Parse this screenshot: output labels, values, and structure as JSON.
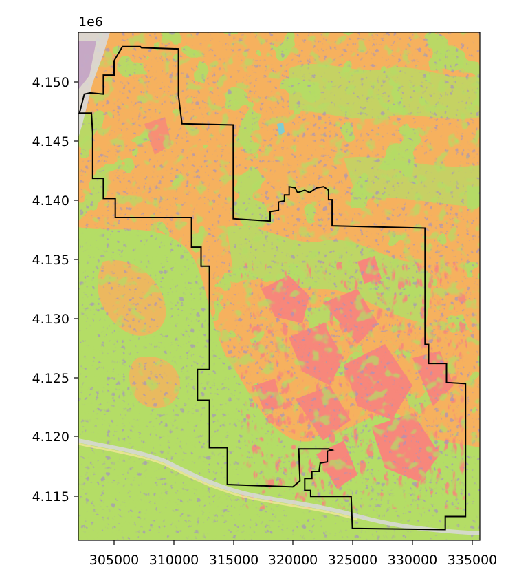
{
  "map": {
    "offset_label": "1e6",
    "x_ticks": [
      "305000",
      "310000",
      "315000",
      "320000",
      "325000",
      "330000",
      "335000"
    ],
    "y_ticks": [
      "4.115",
      "4.120",
      "4.125",
      "4.130",
      "4.135",
      "4.140",
      "4.145",
      "4.150"
    ],
    "colors": {
      "orange_cover": "#f6b15e",
      "green_cover": "#b4dd66",
      "red_cover": "#f7877b",
      "purple_lines": "#a594c0",
      "light_gray": "#d9d9d9",
      "cyan_water": "#7fcdd0",
      "boundary": "#000000"
    }
  },
  "chart_data": {
    "type": "map",
    "x_ticks": [
      305000,
      310000,
      315000,
      320000,
      325000,
      330000,
      335000
    ],
    "y_ticks": [
      4.115,
      4.12,
      4.125,
      4.13,
      4.135,
      4.14,
      4.145,
      4.15
    ],
    "y_offset": "1e6",
    "xlim": [
      302000,
      335700
    ],
    "ylim": [
      4111300,
      4154100
    ],
    "boundary": [
      [
        305700,
        4152900
      ],
      [
        307200,
        4152900
      ],
      [
        307300,
        4152800
      ],
      [
        310400,
        4152700
      ],
      [
        310400,
        4148800
      ],
      [
        310700,
        4146400
      ],
      [
        315000,
        4146300
      ],
      [
        315000,
        4138400
      ],
      [
        318100,
        4138200
      ],
      [
        318100,
        4139000
      ],
      [
        318800,
        4139100
      ],
      [
        318800,
        4139800
      ],
      [
        319300,
        4139900
      ],
      [
        319300,
        4140400
      ],
      [
        319700,
        4140400
      ],
      [
        319700,
        4141100
      ],
      [
        320200,
        4141000
      ],
      [
        320400,
        4140600
      ],
      [
        321000,
        4140800
      ],
      [
        321400,
        4140600
      ],
      [
        322000,
        4141000
      ],
      [
        322600,
        4141100
      ],
      [
        323000,
        4140800
      ],
      [
        323000,
        4140000
      ],
      [
        323300,
        4140000
      ],
      [
        323300,
        4137800
      ],
      [
        331100,
        4137600
      ],
      [
        331100,
        4127800
      ],
      [
        331400,
        4127800
      ],
      [
        331400,
        4126200
      ],
      [
        332900,
        4126200
      ],
      [
        332900,
        4124600
      ],
      [
        334500,
        4124500
      ],
      [
        334500,
        4113300
      ],
      [
        332800,
        4113300
      ],
      [
        332800,
        4112200
      ],
      [
        325000,
        4112300
      ],
      [
        324900,
        4115000
      ],
      [
        321500,
        4115000
      ],
      [
        321500,
        4115500
      ],
      [
        321000,
        4115500
      ],
      [
        321000,
        4116500
      ],
      [
        321600,
        4116500
      ],
      [
        321600,
        4117100
      ],
      [
        322200,
        4117100
      ],
      [
        322300,
        4117800
      ],
      [
        322900,
        4117900
      ],
      [
        322900,
        4118800
      ],
      [
        323300,
        4118900
      ],
      [
        323000,
        4119000
      ],
      [
        320500,
        4119000
      ],
      [
        320600,
        4116300
      ],
      [
        320000,
        4115800
      ],
      [
        314500,
        4116000
      ],
      [
        314500,
        4119100
      ],
      [
        313000,
        4119100
      ],
      [
        313000,
        4123100
      ],
      [
        312000,
        4123100
      ],
      [
        312000,
        4125700
      ],
      [
        313000,
        4125700
      ],
      [
        313000,
        4134400
      ],
      [
        312300,
        4134400
      ],
      [
        312300,
        4136000
      ],
      [
        311500,
        4136000
      ],
      [
        311500,
        4138500
      ],
      [
        305100,
        4138500
      ],
      [
        305100,
        4140100
      ],
      [
        304100,
        4140100
      ],
      [
        304100,
        4141800
      ],
      [
        303200,
        4141800
      ],
      [
        303200,
        4145600
      ],
      [
        303100,
        4147300
      ],
      [
        302100,
        4147300
      ],
      [
        302500,
        4148900
      ],
      [
        303000,
        4149000
      ],
      [
        304100,
        4148900
      ],
      [
        304100,
        4150500
      ],
      [
        305000,
        4150500
      ],
      [
        305000,
        4151700
      ],
      [
        305700,
        4152900
      ]
    ],
    "legend": [],
    "grid": false
  }
}
